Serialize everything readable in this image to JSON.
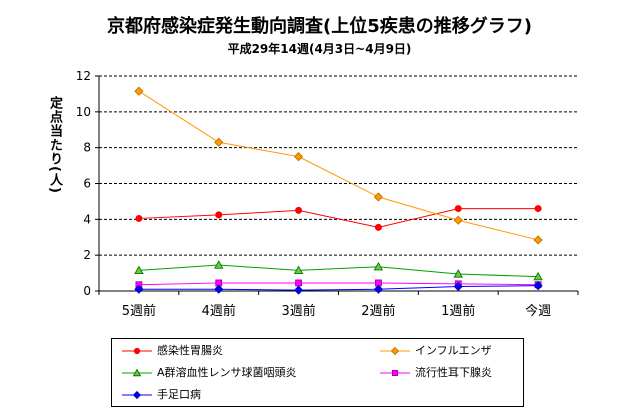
{
  "chart_data": {
    "type": "line",
    "title": "京都府感染症発生動向調査(上位5疾患の推移グラフ)",
    "subtitle": "平成29年14週(4月3日~4月9日)",
    "ylabel": "定点当たり(人)",
    "xlabel": "",
    "categories": [
      "5週前",
      "4週前",
      "3週前",
      "2週前",
      "1週前",
      "今週"
    ],
    "ylim": [
      0,
      12
    ],
    "yticks": [
      0,
      2,
      4,
      6,
      8,
      10,
      12
    ],
    "grid": "horizontal dashed",
    "legend_position": "bottom",
    "series": [
      {
        "name": "感染性胃腸炎",
        "color": "#ff0000",
        "marker": "circle",
        "marker_color": "#ff0000",
        "values": [
          4.05,
          4.25,
          4.5,
          3.55,
          4.6,
          4.6
        ]
      },
      {
        "name": "インフルエンザ",
        "color": "#ff9900",
        "marker": "diamond",
        "marker_color": "#ff9900",
        "values": [
          11.15,
          8.3,
          7.5,
          5.25,
          3.95,
          2.85
        ]
      },
      {
        "name": "A群溶血性レンサ球菌咽頭炎",
        "color": "#00a000",
        "marker": "triangle",
        "marker_color": "#66cc33",
        "values": [
          1.15,
          1.45,
          1.15,
          1.35,
          0.95,
          0.8
        ]
      },
      {
        "name": "流行性耳下腺炎",
        "color": "#ff00ff",
        "marker": "square",
        "marker_color": "#ff00ff",
        "values": [
          0.35,
          0.45,
          0.45,
          0.45,
          0.4,
          0.35
        ]
      },
      {
        "name": "手足口病",
        "color": "#0000ff",
        "marker": "diamond",
        "marker_color": "#0000ff",
        "values": [
          0.1,
          0.1,
          0.05,
          0.1,
          0.25,
          0.3
        ]
      }
    ]
  }
}
